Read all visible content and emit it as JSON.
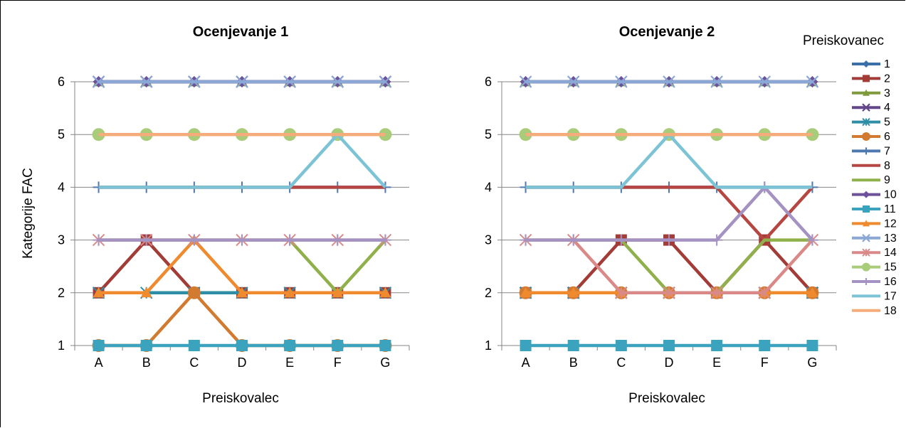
{
  "colors": {
    "s1": "#3a6fa8",
    "s2": "#a33b37",
    "s3": "#7f9b3e",
    "s4": "#63478a",
    "s5": "#2d8ea6",
    "s6": "#d27a2f",
    "s7": "#4e79b0",
    "s8": "#b54642",
    "s9": "#8fb04a",
    "s10": "#6d519a",
    "s11": "#3ba3bd",
    "s12": "#ef8a2e",
    "s13": "#8aa7d6",
    "s14": "#d98a88",
    "s15": "#a9cc7a",
    "s16": "#a493c2",
    "s17": "#7cc3d6",
    "s18": "#f5ab7a"
  },
  "chart_data": [
    {
      "type": "line",
      "title": "Ocenjevanje 1",
      "xlabel": "Preiskovalec",
      "ylabel": "Kategorije FAC",
      "categories": [
        "A",
        "B",
        "C",
        "D",
        "E",
        "F",
        "G"
      ],
      "yticks": [
        1,
        2,
        3,
        4,
        5,
        6
      ],
      "ylim": [
        1,
        6
      ],
      "series": [
        {
          "name": "1",
          "values": [
            6,
            6,
            6,
            6,
            6,
            6,
            6
          ]
        },
        {
          "name": "2",
          "values": [
            2,
            3,
            2,
            2,
            2,
            2,
            2
          ]
        },
        {
          "name": "3",
          "values": [
            6,
            6,
            6,
            6,
            6,
            6,
            6
          ]
        },
        {
          "name": "4",
          "values": [
            6,
            6,
            6,
            6,
            6,
            6,
            6
          ]
        },
        {
          "name": "5",
          "values": [
            2,
            2,
            2,
            2,
            2,
            2,
            2
          ]
        },
        {
          "name": "6",
          "values": [
            1,
            1,
            2,
            1,
            1,
            1,
            1
          ]
        },
        {
          "name": "7",
          "values": [
            4,
            4,
            4,
            4,
            4,
            4,
            4
          ]
        },
        {
          "name": "8",
          "values": [
            4,
            4,
            4,
            4,
            4,
            4,
            4
          ]
        },
        {
          "name": "9",
          "values": [
            3,
            3,
            3,
            3,
            3,
            2,
            3
          ]
        },
        {
          "name": "10",
          "values": [
            6,
            6,
            6,
            6,
            6,
            6,
            6
          ]
        },
        {
          "name": "11",
          "values": [
            1,
            1,
            1,
            1,
            1,
            1,
            1
          ]
        },
        {
          "name": "12",
          "values": [
            2,
            2,
            3,
            2,
            2,
            2,
            2
          ]
        },
        {
          "name": "13",
          "values": [
            6,
            6,
            6,
            6,
            6,
            6,
            6
          ]
        },
        {
          "name": "14",
          "values": [
            3,
            3,
            3,
            3,
            3,
            3,
            3
          ]
        },
        {
          "name": "15",
          "values": [
            5,
            5,
            5,
            5,
            5,
            5,
            5
          ]
        },
        {
          "name": "16",
          "values": [
            3,
            3,
            3,
            3,
            3,
            3,
            3
          ]
        },
        {
          "name": "17",
          "values": [
            4,
            4,
            4,
            4,
            4,
            5,
            4
          ]
        },
        {
          "name": "18",
          "values": [
            5,
            5,
            5,
            5,
            5,
            5,
            5
          ]
        }
      ]
    },
    {
      "type": "line",
      "title": "Ocenjevanje 2",
      "xlabel": "Preiskovalec",
      "ylabel": "",
      "categories": [
        "A",
        "B",
        "C",
        "D",
        "E",
        "F",
        "G"
      ],
      "yticks": [
        1,
        2,
        3,
        4,
        5,
        6
      ],
      "ylim": [
        1,
        6
      ],
      "series": [
        {
          "name": "1",
          "values": [
            6,
            6,
            6,
            6,
            6,
            6,
            6
          ]
        },
        {
          "name": "2",
          "values": [
            2,
            2,
            3,
            3,
            2,
            3,
            2
          ]
        },
        {
          "name": "3",
          "values": [
            6,
            6,
            6,
            6,
            6,
            6,
            6
          ]
        },
        {
          "name": "4",
          "values": [
            2,
            2,
            2,
            2,
            2,
            2,
            2
          ]
        },
        {
          "name": "5",
          "values": [
            2,
            2,
            2,
            2,
            2,
            2,
            2
          ]
        },
        {
          "name": "6",
          "values": [
            2,
            2,
            2,
            2,
            2,
            2,
            2
          ]
        },
        {
          "name": "7",
          "values": [
            4,
            4,
            4,
            4,
            4,
            4,
            4
          ]
        },
        {
          "name": "8",
          "values": [
            4,
            4,
            4,
            4,
            4,
            3,
            4
          ]
        },
        {
          "name": "9",
          "values": [
            3,
            3,
            3,
            2,
            2,
            3,
            3
          ]
        },
        {
          "name": "10",
          "values": [
            6,
            6,
            6,
            6,
            6,
            6,
            6
          ]
        },
        {
          "name": "11",
          "values": [
            1,
            1,
            1,
            1,
            1,
            1,
            1
          ]
        },
        {
          "name": "12",
          "values": [
            2,
            2,
            2,
            2,
            2,
            2,
            2
          ]
        },
        {
          "name": "13",
          "values": [
            6,
            6,
            6,
            6,
            6,
            6,
            6
          ]
        },
        {
          "name": "14",
          "values": [
            3,
            3,
            2,
            2,
            2,
            2,
            3
          ]
        },
        {
          "name": "15",
          "values": [
            5,
            5,
            5,
            5,
            5,
            5,
            5
          ]
        },
        {
          "name": "16",
          "values": [
            3,
            3,
            3,
            3,
            3,
            4,
            3
          ]
        },
        {
          "name": "17",
          "values": [
            4,
            4,
            4,
            5,
            4,
            4,
            4
          ]
        },
        {
          "name": "18",
          "values": [
            5,
            5,
            5,
            5,
            5,
            5,
            5
          ]
        }
      ]
    }
  ],
  "legend": {
    "title": "Preiskovanec",
    "placement": "right",
    "markers": [
      "diamond",
      "square",
      "triangle",
      "x",
      "asterisk",
      "circle",
      "plus",
      "none",
      "none",
      "diamond",
      "square",
      "triangle",
      "x",
      "asterisk",
      "circle",
      "plus",
      "none",
      "none"
    ]
  }
}
